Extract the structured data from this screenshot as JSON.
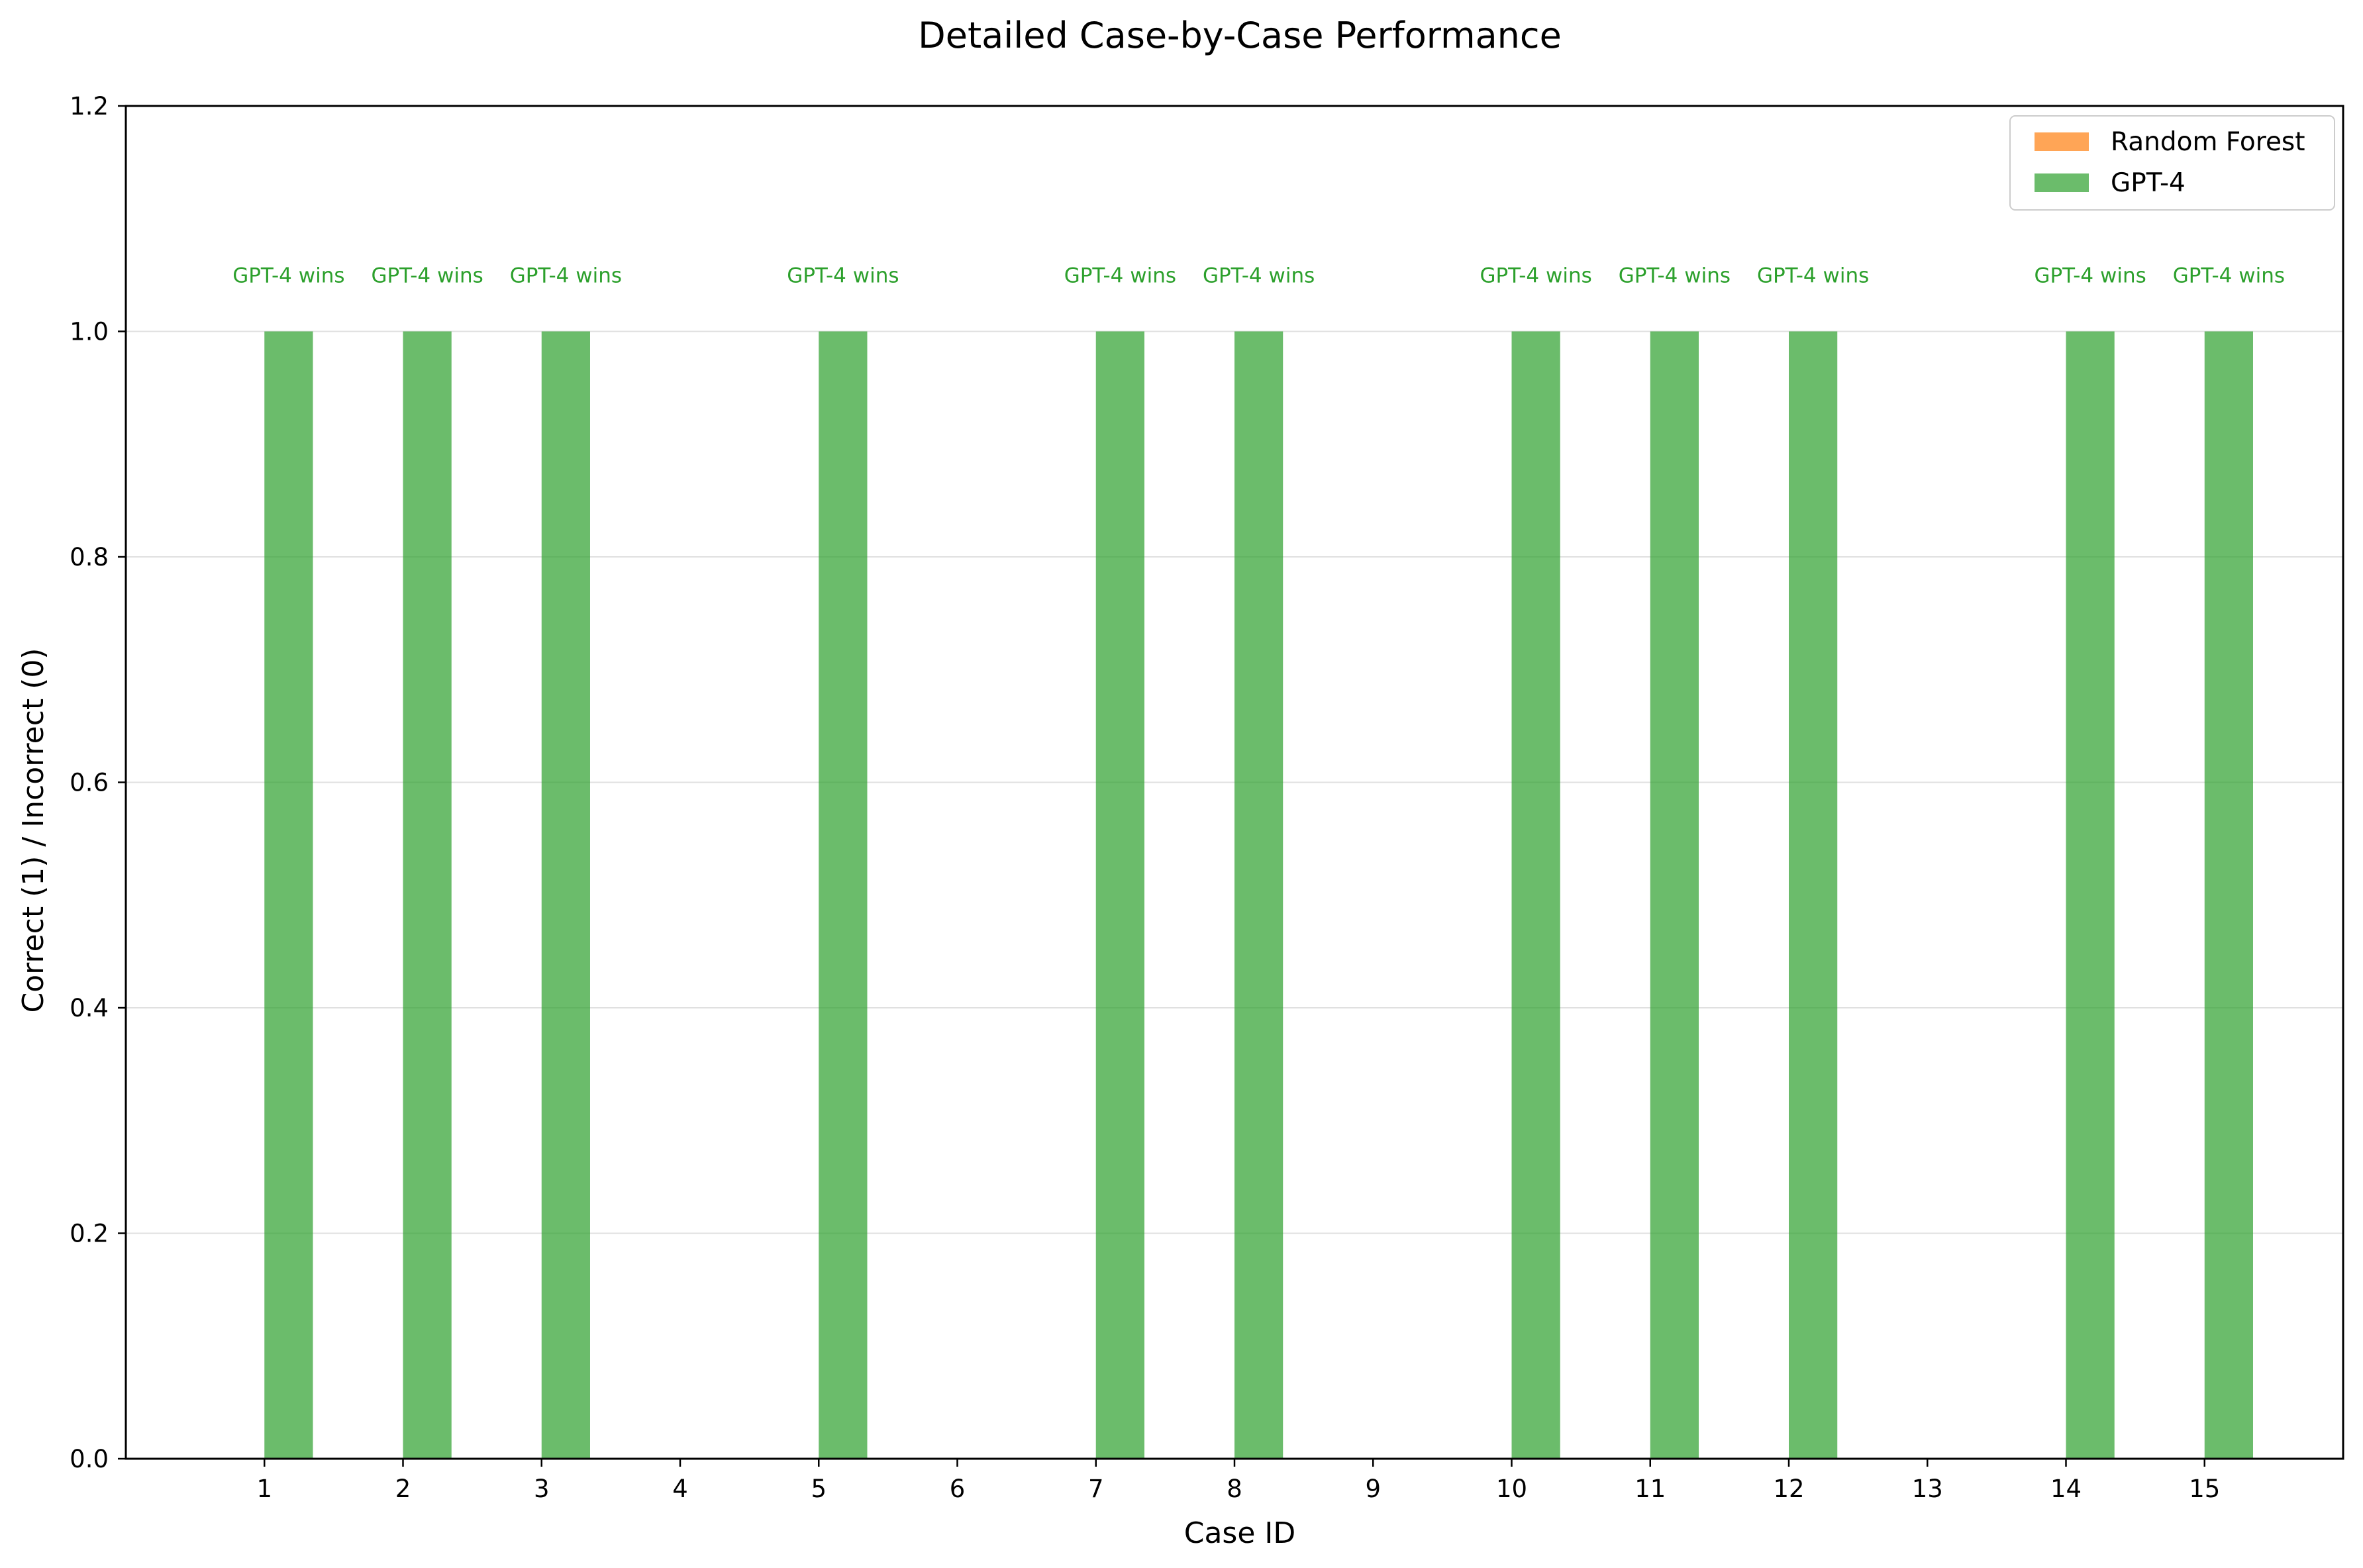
{
  "chart_data": {
    "type": "bar",
    "title": "Detailed Case-by-Case Performance",
    "xlabel": "Case ID",
    "ylabel": "Correct (1) / Incorrect (0)",
    "categories": [
      "1",
      "2",
      "3",
      "4",
      "5",
      "6",
      "7",
      "8",
      "9",
      "10",
      "11",
      "12",
      "13",
      "14",
      "15"
    ],
    "series": [
      {
        "name": "Random Forest",
        "color": "#ff7f0e",
        "values": [
          0,
          0,
          0,
          0,
          0,
          0,
          0,
          0,
          0,
          0,
          0,
          0,
          0,
          0,
          0
        ]
      },
      {
        "name": "GPT-4",
        "color": "#2ca02c",
        "values": [
          1,
          1,
          1,
          0,
          1,
          0,
          1,
          1,
          0,
          1,
          1,
          1,
          0,
          1,
          1
        ]
      }
    ],
    "annotations": [
      {
        "category": "1",
        "text": "GPT-4 wins"
      },
      {
        "category": "2",
        "text": "GPT-4 wins"
      },
      {
        "category": "3",
        "text": "GPT-4 wins"
      },
      {
        "category": "5",
        "text": "GPT-4 wins"
      },
      {
        "category": "7",
        "text": "GPT-4 wins"
      },
      {
        "category": "8",
        "text": "GPT-4 wins"
      },
      {
        "category": "10",
        "text": "GPT-4 wins"
      },
      {
        "category": "11",
        "text": "GPT-4 wins"
      },
      {
        "category": "12",
        "text": "GPT-4 wins"
      },
      {
        "category": "14",
        "text": "GPT-4 wins"
      },
      {
        "category": "15",
        "text": "GPT-4 wins"
      }
    ],
    "ylim": [
      0,
      1.2
    ],
    "yticks": [
      "0.0",
      "0.2",
      "0.4",
      "0.6",
      "0.8",
      "1.0",
      "1.2"
    ],
    "grid": "y",
    "legend": "top-right"
  }
}
